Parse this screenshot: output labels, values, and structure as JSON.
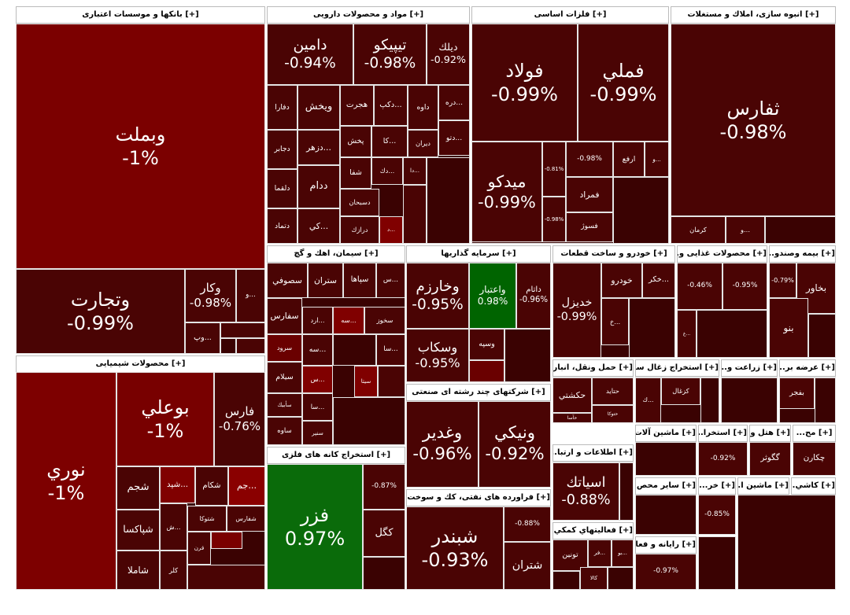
{
  "default_color": "#4a0404",
  "sectors": [
    {
      "title": "[+] بانکها و موسسات اعتباری",
      "tiles": [
        {
          "label": "وبملت",
          "change": "-1%",
          "color": "#7b0000"
        },
        {
          "label": "وتجارت",
          "change": "-0.99%"
        },
        {
          "label": "وکار",
          "change": "-0.98%"
        },
        {
          "label": "و..."
        },
        {
          "label": "وپ..."
        }
      ]
    },
    {
      "title": "[+] محصولات شیمیایی",
      "tiles": [
        {
          "label": "نوري",
          "change": "-1%",
          "color": "#7d0000"
        },
        {
          "label": "بوعلي",
          "change": "-1%",
          "color": "#780000"
        },
        {
          "label": "فارس",
          "change": "-0.76%"
        },
        {
          "label": "شجم"
        },
        {
          "label": "شپد...",
          "color": "#800000"
        },
        {
          "label": "شکام"
        },
        {
          "label": "جم...",
          "color": "#8a0000"
        },
        {
          "label": "شپاکسا"
        },
        {
          "label": "شاملا"
        },
        {
          "label": "ش..."
        },
        {
          "label": "کلر"
        },
        {
          "label": "شتوکا"
        },
        {
          "label": "قرن"
        },
        {
          "label": "شفارس"
        }
      ]
    },
    {
      "title": "[+] مواد و محصولات دارویی",
      "tiles": [
        {
          "label": "دامين",
          "change": "-0.94%"
        },
        {
          "label": "تيپيکو",
          "change": "-0.98%"
        },
        {
          "label": "ديلك",
          "change": "-0.92%"
        },
        {
          "label": "دفارا"
        },
        {
          "label": "ويخش"
        },
        {
          "label": "هجرت"
        },
        {
          "label": "دکپ..."
        },
        {
          "label": "داوه"
        },
        {
          "label": "دره..."
        },
        {
          "label": "دجابر"
        },
        {
          "label": "دزهر..."
        },
        {
          "label": "پخش"
        },
        {
          "label": "کا..."
        },
        {
          "label": "ديران"
        },
        {
          "label": "دتو..."
        },
        {
          "label": "دلقما"
        },
        {
          "label": "ددام"
        },
        {
          "label": "شفا"
        },
        {
          "label": "دك..."
        },
        {
          "label": "دا..."
        },
        {
          "label": "دسبحان"
        },
        {
          "label": "دتماد"
        },
        {
          "label": "كي..."
        },
        {
          "label": "درازك"
        },
        {
          "label": "د...",
          "color": "#800000"
        }
      ]
    },
    {
      "title": "[+] فلزات اساسی",
      "tiles": [
        {
          "label": "فولاد",
          "change": "-0.99%"
        },
        {
          "label": "فملي",
          "change": "-0.99%"
        },
        {
          "label": "ميدكو",
          "change": "-0.99%"
        },
        {
          "change": "-0.81%"
        },
        {
          "change": "-0.98%"
        },
        {
          "label": "ارفع"
        },
        {
          "label": "و..."
        },
        {
          "label": "فمراد"
        },
        {
          "change": "-0.98%"
        },
        {
          "label": "فسوژ"
        }
      ]
    },
    {
      "title": "[+] انبوه سازی، املاك و مستغلات",
      "tiles": [
        {
          "label": "ثفارس",
          "change": "-0.98%"
        },
        {
          "label": "کرمان"
        },
        {
          "label": "و..."
        }
      ]
    },
    {
      "title": "[+] سيمان، اهك و گچ",
      "tiles": [
        {
          "label": "سصوفي"
        },
        {
          "label": "ستران"
        },
        {
          "label": "سپاها"
        },
        {
          "label": "س..."
        },
        {
          "label": "سفارس"
        },
        {
          "label": "ارد..."
        },
        {
          "label": "سه...",
          "color": "#800000"
        },
        {
          "label": "سخوز"
        },
        {
          "label": "سرود",
          "color": "#6a0000"
        },
        {
          "label": "سه..."
        },
        {
          "label": "سا..."
        },
        {
          "label": "سيلام"
        },
        {
          "label": "س...",
          "color": "#800000"
        },
        {
          "label": "سيتا",
          "color": "#800000"
        },
        {
          "label": "سأبيك"
        },
        {
          "label": "سا..."
        },
        {
          "label": "ساوه"
        },
        {
          "label": "سنير"
        }
      ]
    },
    {
      "title": "[+] سرمايه گذاريها",
      "tiles": [
        {
          "label": "وخارزم",
          "change": "-0.95%"
        },
        {
          "label": "واعتبار",
          "change": "0.98%",
          "color": "#006400"
        },
        {
          "label": "داتام",
          "change": "-0.96%"
        },
        {
          "label": "وسكاب",
          "change": "-0.95%"
        },
        {
          "label": "وسپه"
        }
      ]
    },
    {
      "title": "[+] شرکتهای چند رشته ای صنعتی",
      "tiles": [
        {
          "label": "وغدير",
          "change": "-0.96%"
        },
        {
          "label": "ونيکي",
          "change": "-0.92%"
        }
      ]
    },
    {
      "title": "[+] استخراج کانه های فلزی",
      "tiles": [
        {
          "label": "فزر",
          "change": "0.97%",
          "color": "#0a6b0a"
        },
        {
          "change": "-0.87%"
        },
        {
          "label": "کگل"
        }
      ]
    },
    {
      "title": "[+] فراورده های نفتی، کك و سوخت هس...",
      "tiles": [
        {
          "label": "شبندر",
          "change": "-0.93%"
        },
        {
          "change": "-0.88%"
        },
        {
          "label": "شتران"
        }
      ]
    },
    {
      "title": "[+] خودرو و ساخت قطعات",
      "tiles": [
        {
          "label": "خديزل",
          "change": "-0.99%"
        },
        {
          "label": "خودرو"
        },
        {
          "label": "خكر..."
        },
        {
          "label": "خ..."
        }
      ]
    },
    {
      "title": "[+] محصولات غذایی و...",
      "tiles": [
        {
          "change": "-0.46%"
        },
        {
          "change": "-0.95%"
        },
        {
          "label": "غ..."
        }
      ]
    },
    {
      "title": "[+] بیمه وصندو...",
      "tiles": [
        {
          "change": "-0.79%"
        },
        {
          "label": "بخاور"
        },
        {
          "label": "بنو"
        }
      ]
    },
    {
      "title": "[+] حمل ونقل، انبارد...",
      "tiles": [
        {
          "label": "حكشتي"
        },
        {
          "label": "حتايد"
        },
        {
          "label": "حتوكا"
        },
        {
          "label": "حآسا"
        }
      ]
    },
    {
      "title": "[+] استخراج زغال سنگ",
      "tiles": [
        {
          "label": "کزغال"
        },
        {
          "label": "ك..."
        }
      ]
    },
    {
      "title": "[+] زراعت و...",
      "tiles": []
    },
    {
      "title": "[+] عرضه بر...",
      "tiles": [
        {
          "label": "بفجر"
        }
      ]
    },
    {
      "title": "[+] اطلاعات و ارتبا...",
      "tiles": [
        {
          "label": "اسياتك",
          "change": "-0.88%"
        }
      ]
    },
    {
      "title": "[+] ماشين آلات...",
      "tiles": []
    },
    {
      "title": "[+] استخرا...",
      "tiles": [
        {
          "change": "-0.92%"
        }
      ]
    },
    {
      "title": "[+] هتل و...",
      "tiles": [
        {
          "label": "گگوثر"
        }
      ]
    },
    {
      "title": "[+] مح...",
      "tiles": [
        {
          "label": "چكارن"
        }
      ]
    },
    {
      "title": "[+] فعاليتهاي كمكي...",
      "tiles": [
        {
          "label": "تونين"
        },
        {
          "label": "فر..."
        },
        {
          "label": "بو..."
        },
        {
          "label": "كالا"
        }
      ]
    },
    {
      "title": "[+] ساير محص...",
      "tiles": []
    },
    {
      "title": "[+] رايانه و فعا...",
      "tiles": [
        {
          "change": "-0.97%"
        }
      ]
    },
    {
      "title": "[+] خر...",
      "tiles": [
        {
          "change": "-0.85%"
        }
      ]
    },
    {
      "title": "[+] ماشين ا...",
      "tiles": []
    },
    {
      "title": "[+] كاشي...",
      "tiles": []
    }
  ]
}
